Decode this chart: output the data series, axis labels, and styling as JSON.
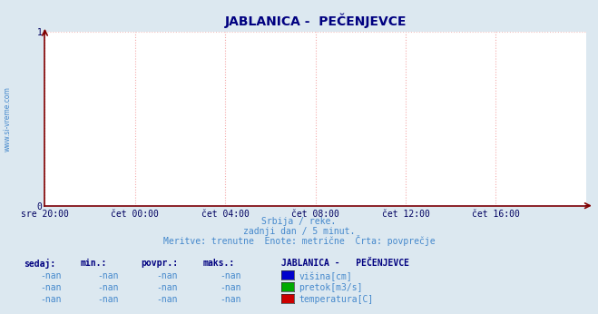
{
  "title": "JABLANICA -  PEČENJEVCE",
  "bg_color": "#dce8f0",
  "plot_bg_color": "#ffffff",
  "title_color": "#000080",
  "title_fontsize": 10,
  "xlim": [
    0,
    1
  ],
  "ylim": [
    0,
    1
  ],
  "yticks": [
    0,
    1
  ],
  "xtick_labels": [
    "sre 20:00",
    "čet 00:00",
    "čet 04:00",
    "čet 08:00",
    "čet 12:00",
    "čet 16:00"
  ],
  "xtick_positions": [
    0.0,
    0.1667,
    0.3333,
    0.5,
    0.6667,
    0.8333
  ],
  "grid_color": "#f4aaaa",
  "axis_color": "#800000",
  "tick_color": "#000060",
  "watermark": "www.si-vreme.com",
  "subtitle_line1": "Srbija / reke.",
  "subtitle_line2": "zadnji dan / 5 minut.",
  "subtitle_line3": "Meritve: trenutne  Enote: metrične  Črta: povprečje",
  "subtitle_color": "#4488cc",
  "legend_title": "JABLANICA -   PEČENJEVCE",
  "legend_title_color": "#000080",
  "legend_items": [
    {
      "label": "višina[cm]",
      "color": "#0000cc"
    },
    {
      "label": "pretok[m3/s]",
      "color": "#00aa00"
    },
    {
      "label": "temperatura[C]",
      "color": "#cc0000"
    }
  ],
  "table_headers": [
    "sedaj:",
    "min.:",
    "povpr.:",
    "maks.:"
  ],
  "table_values": [
    "-nan",
    "-nan",
    "-nan",
    "-nan"
  ],
  "table_header_color": "#000080",
  "data_color": "#4488cc",
  "line_color": "#0000aa",
  "arrow_color": "#800000",
  "hgrid_color": "#f0c0c0",
  "vgrid_color": "#f4aaaa"
}
